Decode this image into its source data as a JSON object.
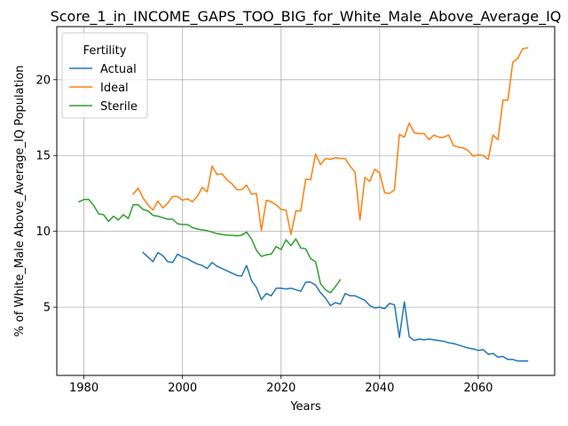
{
  "chart_data": {
    "type": "line",
    "title": "Score_1_in_INCOME_GAPS_TOO_BIG_for_White_Male_Above_Average_IQ",
    "xlabel": "Years",
    "ylabel": "% of White_Male Above_Average_IQ Population",
    "xlim": [
      1974.5,
      2075.5
    ],
    "ylim": [
      0.5,
      23.5
    ],
    "xticks": [
      1980,
      2000,
      2020,
      2040,
      2060
    ],
    "yticks": [
      5,
      10,
      15,
      20
    ],
    "grid": true,
    "legend": {
      "title": "Fertility",
      "placement": "top-left"
    },
    "series": [
      {
        "name": "Actual",
        "color": "#1f77b4",
        "points": [
          [
            1992,
            8.6
          ],
          [
            1993,
            8.3
          ],
          [
            1994,
            8.0
          ],
          [
            1995,
            8.6
          ],
          [
            1996,
            8.4
          ],
          [
            1997,
            8.0
          ],
          [
            1998,
            7.95
          ],
          [
            1999,
            8.5
          ],
          [
            2000,
            8.3
          ],
          [
            2001,
            8.2
          ],
          [
            2002,
            8.0
          ],
          [
            2003,
            7.85
          ],
          [
            2004,
            7.75
          ],
          [
            2005,
            7.55
          ],
          [
            2006,
            7.95
          ],
          [
            2007,
            7.7
          ],
          [
            2008,
            7.55
          ],
          [
            2009,
            7.4
          ],
          [
            2010,
            7.25
          ],
          [
            2011,
            7.1
          ],
          [
            2012,
            7.05
          ],
          [
            2013,
            7.75
          ],
          [
            2014,
            6.75
          ],
          [
            2015,
            6.3
          ],
          [
            2016,
            5.5
          ],
          [
            2017,
            5.9
          ],
          [
            2018,
            5.75
          ],
          [
            2019,
            6.25
          ],
          [
            2020,
            6.25
          ],
          [
            2021,
            6.2
          ],
          [
            2022,
            6.25
          ],
          [
            2023,
            6.15
          ],
          [
            2024,
            6.05
          ],
          [
            2025,
            6.65
          ],
          [
            2026,
            6.65
          ],
          [
            2027,
            6.45
          ],
          [
            2028,
            5.95
          ],
          [
            2029,
            5.6
          ],
          [
            2030,
            5.1
          ],
          [
            2031,
            5.3
          ],
          [
            2032,
            5.2
          ],
          [
            2033,
            5.9
          ],
          [
            2034,
            5.75
          ],
          [
            2035,
            5.75
          ],
          [
            2036,
            5.6
          ],
          [
            2037,
            5.45
          ],
          [
            2038,
            5.1
          ],
          [
            2039,
            4.95
          ],
          [
            2040,
            5.0
          ],
          [
            2041,
            4.9
          ],
          [
            2042,
            5.25
          ],
          [
            2043,
            5.15
          ],
          [
            2044,
            3.0
          ],
          [
            2045,
            5.35
          ],
          [
            2046,
            3.05
          ],
          [
            2047,
            2.8
          ],
          [
            2048,
            2.9
          ],
          [
            2049,
            2.85
          ],
          [
            2050,
            2.9
          ],
          [
            2051,
            2.85
          ],
          [
            2052,
            2.8
          ],
          [
            2053,
            2.75
          ],
          [
            2054,
            2.65
          ],
          [
            2055,
            2.6
          ],
          [
            2056,
            2.5
          ],
          [
            2057,
            2.4
          ],
          [
            2058,
            2.3
          ],
          [
            2059,
            2.25
          ],
          [
            2060,
            2.15
          ],
          [
            2061,
            2.2
          ],
          [
            2062,
            1.9
          ],
          [
            2063,
            1.95
          ],
          [
            2064,
            1.7
          ],
          [
            2065,
            1.75
          ],
          [
            2066,
            1.55
          ],
          [
            2067,
            1.55
          ],
          [
            2068,
            1.45
          ],
          [
            2069,
            1.45
          ],
          [
            2070,
            1.45
          ]
        ]
      },
      {
        "name": "Ideal",
        "color": "#ff7f0e",
        "points": [
          [
            1990,
            12.45
          ],
          [
            1991,
            12.85
          ],
          [
            1992,
            12.2
          ],
          [
            1993,
            11.75
          ],
          [
            1994,
            11.4
          ],
          [
            1995,
            12.0
          ],
          [
            1996,
            11.55
          ],
          [
            1997,
            11.85
          ],
          [
            1998,
            12.3
          ],
          [
            1999,
            12.3
          ],
          [
            2000,
            12.05
          ],
          [
            2001,
            12.15
          ],
          [
            2002,
            11.95
          ],
          [
            2003,
            12.3
          ],
          [
            2004,
            12.9
          ],
          [
            2005,
            12.6
          ],
          [
            2006,
            14.3
          ],
          [
            2007,
            13.75
          ],
          [
            2008,
            13.8
          ],
          [
            2009,
            13.4
          ],
          [
            2010,
            13.15
          ],
          [
            2011,
            12.75
          ],
          [
            2012,
            12.75
          ],
          [
            2013,
            13.05
          ],
          [
            2014,
            12.45
          ],
          [
            2015,
            12.5
          ],
          [
            2016,
            10.05
          ],
          [
            2017,
            12.05
          ],
          [
            2018,
            11.95
          ],
          [
            2019,
            11.75
          ],
          [
            2020,
            11.45
          ],
          [
            2021,
            11.4
          ],
          [
            2022,
            9.8
          ],
          [
            2023,
            11.35
          ],
          [
            2024,
            11.35
          ],
          [
            2025,
            13.45
          ],
          [
            2026,
            13.4
          ],
          [
            2027,
            15.1
          ],
          [
            2028,
            14.4
          ],
          [
            2029,
            14.8
          ],
          [
            2030,
            14.75
          ],
          [
            2031,
            14.85
          ],
          [
            2032,
            14.8
          ],
          [
            2033,
            14.8
          ],
          [
            2034,
            14.3
          ],
          [
            2035,
            13.9
          ],
          [
            2036,
            10.75
          ],
          [
            2037,
            13.55
          ],
          [
            2038,
            13.3
          ],
          [
            2039,
            14.1
          ],
          [
            2040,
            13.85
          ],
          [
            2041,
            12.55
          ],
          [
            2042,
            12.5
          ],
          [
            2043,
            12.75
          ],
          [
            2044,
            16.4
          ],
          [
            2045,
            16.2
          ],
          [
            2046,
            17.15
          ],
          [
            2047,
            16.5
          ],
          [
            2048,
            16.45
          ],
          [
            2049,
            16.45
          ],
          [
            2050,
            16.05
          ],
          [
            2051,
            16.35
          ],
          [
            2052,
            16.2
          ],
          [
            2053,
            16.2
          ],
          [
            2054,
            16.35
          ],
          [
            2055,
            15.65
          ],
          [
            2056,
            15.55
          ],
          [
            2057,
            15.5
          ],
          [
            2058,
            15.3
          ],
          [
            2059,
            14.95
          ],
          [
            2060,
            15.05
          ],
          [
            2061,
            15.0
          ],
          [
            2062,
            14.75
          ],
          [
            2063,
            16.35
          ],
          [
            2064,
            16.05
          ],
          [
            2065,
            18.65
          ],
          [
            2066,
            18.65
          ],
          [
            2067,
            21.15
          ],
          [
            2068,
            21.4
          ],
          [
            2069,
            22.05
          ],
          [
            2070,
            22.1
          ]
        ]
      },
      {
        "name": "Sterile",
        "color": "#2ca02c",
        "points": [
          [
            1979,
            11.95
          ],
          [
            1980,
            12.1
          ],
          [
            1981,
            12.1
          ],
          [
            1982,
            11.7
          ],
          [
            1983,
            11.15
          ],
          [
            1984,
            11.1
          ],
          [
            1985,
            10.65
          ],
          [
            1986,
            11.0
          ],
          [
            1987,
            10.75
          ],
          [
            1988,
            11.1
          ],
          [
            1989,
            10.85
          ],
          [
            1990,
            11.75
          ],
          [
            1991,
            11.75
          ],
          [
            1992,
            11.45
          ],
          [
            1993,
            11.35
          ],
          [
            1994,
            11.05
          ],
          [
            1995,
            11.0
          ],
          [
            1996,
            10.9
          ],
          [
            1997,
            10.8
          ],
          [
            1998,
            10.8
          ],
          [
            1999,
            10.5
          ],
          [
            2000,
            10.45
          ],
          [
            2001,
            10.45
          ],
          [
            2002,
            10.25
          ],
          [
            2003,
            10.15
          ],
          [
            2004,
            10.1
          ],
          [
            2005,
            10.05
          ],
          [
            2006,
            9.95
          ],
          [
            2007,
            9.85
          ],
          [
            2008,
            9.8
          ],
          [
            2009,
            9.75
          ],
          [
            2010,
            9.75
          ],
          [
            2011,
            9.7
          ],
          [
            2012,
            9.75
          ],
          [
            2013,
            9.95
          ],
          [
            2014,
            9.5
          ],
          [
            2015,
            8.75
          ],
          [
            2016,
            8.35
          ],
          [
            2017,
            8.45
          ],
          [
            2018,
            8.5
          ],
          [
            2019,
            9.0
          ],
          [
            2020,
            8.8
          ],
          [
            2021,
            9.45
          ],
          [
            2022,
            9.05
          ],
          [
            2023,
            9.5
          ],
          [
            2024,
            8.9
          ],
          [
            2025,
            8.85
          ],
          [
            2026,
            8.2
          ],
          [
            2027,
            8.0
          ],
          [
            2028,
            6.55
          ],
          [
            2029,
            6.15
          ],
          [
            2030,
            5.95
          ],
          [
            2031,
            6.35
          ],
          [
            2032,
            6.8
          ]
        ]
      }
    ]
  }
}
